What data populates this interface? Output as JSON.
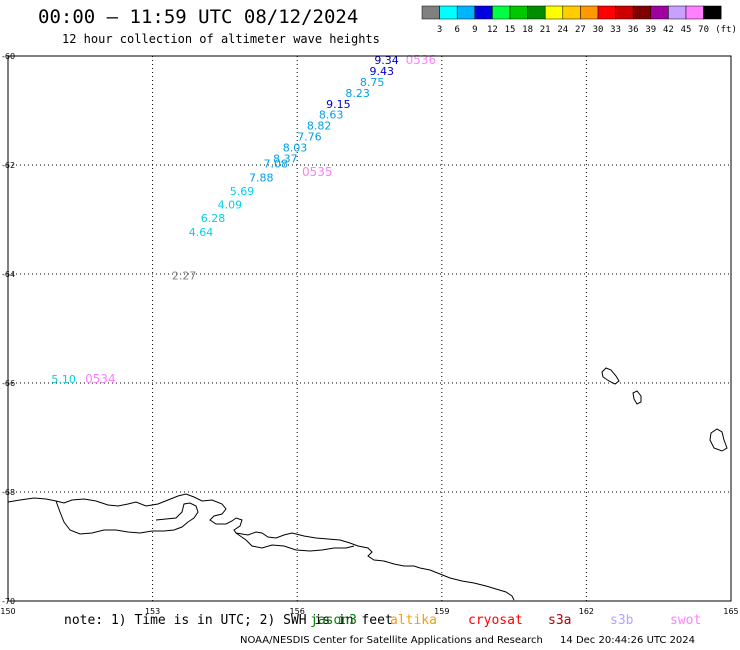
{
  "header": {
    "title": "00:00 – 11:59 UTC 08/12/2024",
    "subtitle": "12 hour collection of altimeter wave heights"
  },
  "legend": {
    "unit": "(ft)",
    "bins": [
      {
        "label": "3",
        "color": "#808080"
      },
      {
        "label": "6",
        "color": "#00ffff"
      },
      {
        "label": "9",
        "color": "#00b4ff"
      },
      {
        "label": "12",
        "color": "#0000e0"
      },
      {
        "label": "15",
        "color": "#00ff44"
      },
      {
        "label": "18",
        "color": "#00c800"
      },
      {
        "label": "21",
        "color": "#008c00"
      },
      {
        "label": "24",
        "color": "#ffff00"
      },
      {
        "label": "27",
        "color": "#ffcc00"
      },
      {
        "label": "30",
        "color": "#ff9900"
      },
      {
        "label": "33",
        "color": "#ff0000"
      },
      {
        "label": "36",
        "color": "#cc0000"
      },
      {
        "label": "39",
        "color": "#800000"
      },
      {
        "label": "42",
        "color": "#a000a0"
      },
      {
        "label": "45",
        "color": "#c8a0ff"
      },
      {
        "label": "70",
        "color": "#ff80ff"
      },
      {
        "label": "",
        "color": "#000000"
      }
    ]
  },
  "map": {
    "lon_range": [
      150,
      165
    ],
    "lat_range": [
      -70,
      -60
    ],
    "lon_ticks": [
      "150",
      "153",
      "156",
      "159",
      "162",
      "165"
    ],
    "lat_ticks": [
      "-60",
      "-62",
      "-64",
      "-66",
      "-68",
      "-70"
    ],
    "observations": [
      {
        "value": "9.34",
        "color": "#0000cc",
        "lon": 157.6,
        "lat": -60.15
      },
      {
        "value": "9.43",
        "color": "#0000cc",
        "lon": 157.5,
        "lat": -60.35
      },
      {
        "value": "8.75",
        "color": "#00a0e6",
        "lon": 157.3,
        "lat": -60.55
      },
      {
        "value": "8.23",
        "color": "#00a0e6",
        "lon": 157.0,
        "lat": -60.75
      },
      {
        "value": "9.15",
        "color": "#0000cc",
        "lon": 156.6,
        "lat": -60.95
      },
      {
        "value": "8.63",
        "color": "#00a0e6",
        "lon": 156.45,
        "lat": -61.15
      },
      {
        "value": "8.82",
        "color": "#00a0e6",
        "lon": 156.2,
        "lat": -61.35
      },
      {
        "value": "7.76",
        "color": "#00a0e6",
        "lon": 156.0,
        "lat": -61.55
      },
      {
        "value": "8.03",
        "color": "#00a0e6",
        "lon": 155.7,
        "lat": -61.75
      },
      {
        "value": "8.37",
        "color": "#00a0e6",
        "lon": 155.5,
        "lat": -61.95
      },
      {
        "value": "7.08",
        "color": "#00a0e6",
        "lon": 155.3,
        "lat": -62.05
      },
      {
        "value": "7.88",
        "color": "#00a0e6",
        "lon": 155.0,
        "lat": -62.3
      },
      {
        "value": "5.69",
        "color": "#00d2e6",
        "lon": 154.6,
        "lat": -62.55
      },
      {
        "value": "4.09",
        "color": "#00d2e6",
        "lon": 154.35,
        "lat": -62.8
      },
      {
        "value": "6.28",
        "color": "#00d2e6",
        "lon": 154.0,
        "lat": -63.05
      },
      {
        "value": "4.64",
        "color": "#00d2e6",
        "lon": 153.75,
        "lat": -63.3
      },
      {
        "value": "5.10",
        "color": "#00d2e6",
        "lon": 150.9,
        "lat": -66.0
      },
      {
        "value": "2.27",
        "color": "#808080",
        "lon": 153.4,
        "lat": -64.1
      }
    ],
    "time_labels": [
      {
        "value": "0536",
        "color": "#ff80ff",
        "lon": 158.25,
        "lat": -60.15
      },
      {
        "value": "0535",
        "color": "#ff80ff",
        "lon": 156.1,
        "lat": -62.2
      },
      {
        "value": "0534",
        "color": "#ff80ff",
        "lon": 151.6,
        "lat": -66.0
      }
    ]
  },
  "footer": {
    "note": "note: 1) Time is in UTC; 2) SWH is in feet",
    "satellites": [
      {
        "name": "jason3",
        "color": "#008000"
      },
      {
        "name": "altika",
        "color": "#ff9900"
      },
      {
        "name": "cryosat",
        "color": "#ff0000"
      },
      {
        "name": "s3a",
        "color": "#b00000"
      },
      {
        "name": "s3b",
        "color": "#b8a0ff"
      },
      {
        "name": "swot",
        "color": "#ff80ff"
      }
    ],
    "credit": "NOAA/NESDIS Center for Satellite Applications and Research",
    "timestamp": "14 Dec 20:44:26 UTC 2024"
  }
}
